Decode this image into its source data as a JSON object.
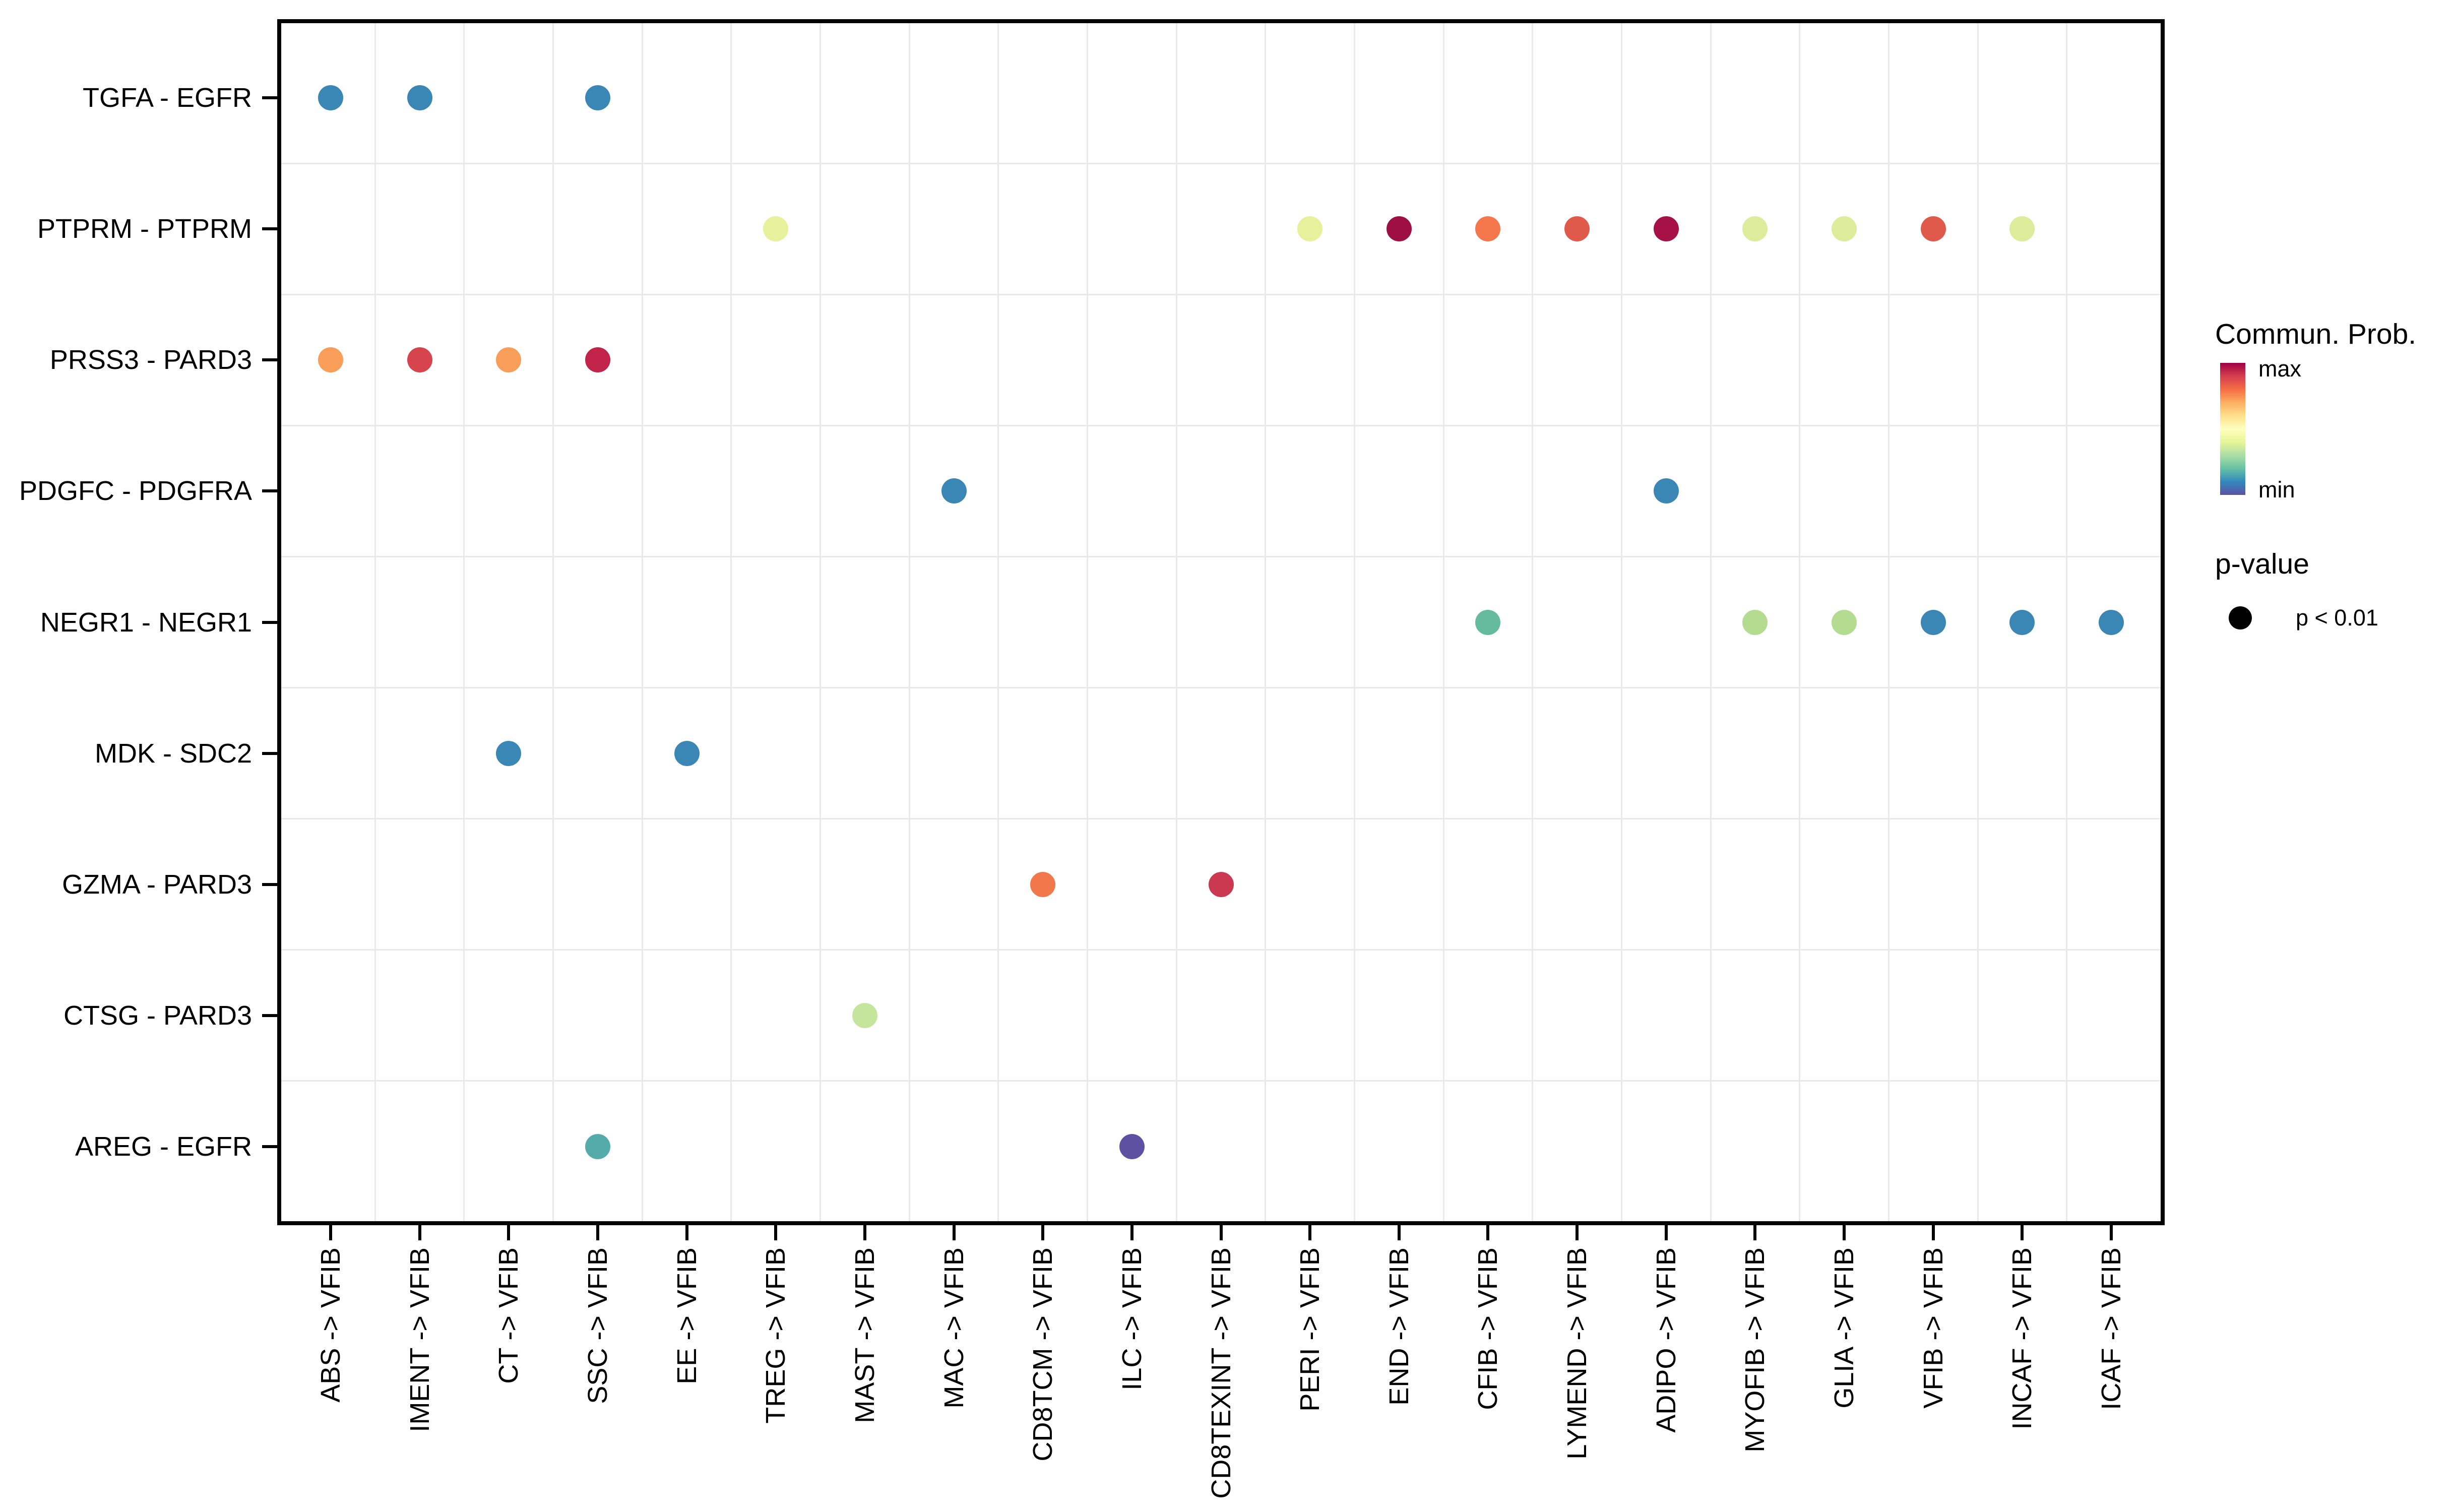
{
  "chart_data": {
    "type": "scatter",
    "title": "",
    "xlabel": "",
    "ylabel": "",
    "x_categories": [
      "ABS -> VFIB",
      "IMENT -> VFIB",
      "CT -> VFIB",
      "SSC -> VFIB",
      "EE -> VFIB",
      "TREG -> VFIB",
      "MAST -> VFIB",
      "MAC -> VFIB",
      "CD8TCM -> VFIB",
      "ILC -> VFIB",
      "CD8TEXINT -> VFIB",
      "PERI -> VFIB",
      "END -> VFIB",
      "CFIB -> VFIB",
      "LYMEND -> VFIB",
      "ADIPO -> VFIB",
      "MYOFIB -> VFIB",
      "GLIA -> VFIB",
      "VFIB -> VFIB",
      "INCAF -> VFIB",
      "ICAF -> VFIB"
    ],
    "y_categories": [
      "TGFA - EGFR",
      "PTPRM - PTPRM",
      "PRSS3 - PARD3",
      "PDGFC - PDGFRA",
      "NEGR1 - NEGR1",
      "MDK - SDC2",
      "GZMA - PARD3",
      "CTSG - PARD3",
      "AREG - EGFR"
    ],
    "points": [
      {
        "x": "ABS -> VFIB",
        "y": "TGFA - EGFR",
        "color": "#3a86b4"
      },
      {
        "x": "IMENT -> VFIB",
        "y": "TGFA - EGFR",
        "color": "#3a86b4"
      },
      {
        "x": "SSC -> VFIB",
        "y": "TGFA - EGFR",
        "color": "#3a86b4"
      },
      {
        "x": "TREG -> VFIB",
        "y": "PTPRM - PTPRM",
        "color": "#e5f29b"
      },
      {
        "x": "PERI -> VFIB",
        "y": "PTPRM - PTPRM",
        "color": "#e5f29b"
      },
      {
        "x": "END -> VFIB",
        "y": "PTPRM - PTPRM",
        "color": "#9e0f42"
      },
      {
        "x": "CFIB -> VFIB",
        "y": "PTPRM - PTPRM",
        "color": "#f4784c"
      },
      {
        "x": "LYMEND -> VFIB",
        "y": "PTPRM - PTPRM",
        "color": "#e05a4b"
      },
      {
        "x": "ADIPO -> VFIB",
        "y": "PTPRM - PTPRM",
        "color": "#a61246"
      },
      {
        "x": "MYOFIB -> VFIB",
        "y": "PTPRM - PTPRM",
        "color": "#ddec9b"
      },
      {
        "x": "GLIA -> VFIB",
        "y": "PTPRM - PTPRM",
        "color": "#ddec9b"
      },
      {
        "x": "VFIB -> VFIB",
        "y": "PTPRM - PTPRM",
        "color": "#e05a4b"
      },
      {
        "x": "INCAF -> VFIB",
        "y": "PTPRM - PTPRM",
        "color": "#ddec9b"
      },
      {
        "x": "ABS -> VFIB",
        "y": "PRSS3 - PARD3",
        "color": "#f89e59"
      },
      {
        "x": "IMENT -> VFIB",
        "y": "PRSS3 - PARD3",
        "color": "#d6454e"
      },
      {
        "x": "CT -> VFIB",
        "y": "PRSS3 - PARD3",
        "color": "#f89e59"
      },
      {
        "x": "SSC -> VFIB",
        "y": "PRSS3 - PARD3",
        "color": "#c22349"
      },
      {
        "x": "MAC -> VFIB",
        "y": "PDGFC - PDGFRA",
        "color": "#3a86b4"
      },
      {
        "x": "ADIPO -> VFIB",
        "y": "PDGFC - PDGFRA",
        "color": "#3a86b4"
      },
      {
        "x": "CFIB -> VFIB",
        "y": "NEGR1 - NEGR1",
        "color": "#66bb9e"
      },
      {
        "x": "MYOFIB -> VFIB",
        "y": "NEGR1 - NEGR1",
        "color": "#b3dc90"
      },
      {
        "x": "GLIA -> VFIB",
        "y": "NEGR1 - NEGR1",
        "color": "#b3dc90"
      },
      {
        "x": "VFIB -> VFIB",
        "y": "NEGR1 - NEGR1",
        "color": "#3a86b4"
      },
      {
        "x": "INCAF -> VFIB",
        "y": "NEGR1 - NEGR1",
        "color": "#3a86b4"
      },
      {
        "x": "ICAF -> VFIB",
        "y": "NEGR1 - NEGR1",
        "color": "#3a86b4"
      },
      {
        "x": "CT -> VFIB",
        "y": "MDK - SDC2",
        "color": "#3a86b4"
      },
      {
        "x": "EE -> VFIB",
        "y": "MDK - SDC2",
        "color": "#3a86b4"
      },
      {
        "x": "CD8TCM -> VFIB",
        "y": "GZMA - PARD3",
        "color": "#f0784a"
      },
      {
        "x": "CD8TEXINT -> VFIB",
        "y": "GZMA - PARD3",
        "color": "#cb3950"
      },
      {
        "x": "MAST -> VFIB",
        "y": "CTSG - PARD3",
        "color": "#c6e59c"
      },
      {
        "x": "SSC -> VFIB",
        "y": "AREG - EGFR",
        "color": "#54abaa"
      },
      {
        "x": "ILC -> VFIB",
        "y": "AREG - EGFR",
        "color": "#5e51a2"
      }
    ],
    "legend": {
      "colorbar_title": "Commun. Prob.",
      "colorbar_max_label": "max",
      "colorbar_min_label": "min",
      "colorbar_gradient_top_to_bottom": [
        "#9e0142",
        "#d53e4f",
        "#f46d43",
        "#fdae61",
        "#fee08b",
        "#ffffbf",
        "#e6f598",
        "#abdda4",
        "#66c2a5",
        "#3288bd",
        "#5e4fa2"
      ],
      "size_title": "p-value",
      "size_item_label": "p < 0.01"
    },
    "layout": {
      "grid": true,
      "legend_position": "right",
      "x_tick_rotation": 90,
      "panel_border": true
    }
  }
}
